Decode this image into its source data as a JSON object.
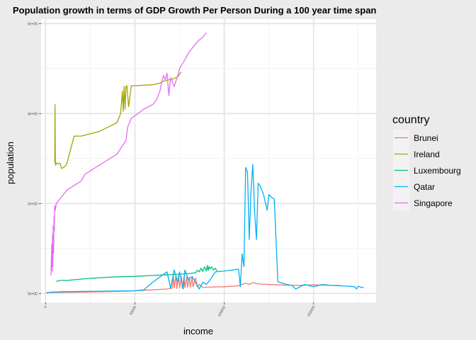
{
  "chart_data": {
    "type": "line",
    "title": "Population growth in terms of GDP Growth Per Person During a 100 year time span",
    "xlabel": "income",
    "ylabel": "population",
    "xlim": [
      -2500,
      185000
    ],
    "ylim": [
      -200000,
      6100000
    ],
    "x_ticks": [
      0,
      50000,
      100000,
      150000
    ],
    "x_tick_labels": [
      "0",
      "50000",
      "100000",
      "150000"
    ],
    "y_ticks": [
      0,
      2000000,
      4000000,
      6000000
    ],
    "y_tick_labels": [
      "0e+00",
      "2e+06",
      "4e+06",
      "6e+06"
    ],
    "legend": {
      "title": "country",
      "position": "right"
    },
    "grid": true,
    "series": [
      {
        "name": "Brunei",
        "color": "#f8766d",
        "x": [
          500,
          20000,
          45000,
          60000,
          68000,
          71000,
          71500,
          72000,
          73000,
          73500,
          74500,
          75000,
          76000,
          76500,
          77500,
          78000,
          79000,
          79500,
          80500,
          81000,
          82000,
          82500,
          84000,
          85000,
          86000,
          88000,
          90000,
          100000,
          108000,
          112000,
          114000,
          116000,
          118000,
          120000,
          130000,
          140000,
          150000,
          160000,
          165000
        ],
        "y": [
          20000,
          30000,
          50000,
          80000,
          100000,
          120000,
          420000,
          130000,
          400000,
          110000,
          400000,
          120000,
          380000,
          120000,
          380000,
          130000,
          370000,
          140000,
          360000,
          140000,
          350000,
          150000,
          340000,
          150000,
          200000,
          130000,
          140000,
          150000,
          170000,
          230000,
          200000,
          240000,
          220000,
          210000,
          190000,
          180000,
          190000,
          180000,
          180000
        ]
      },
      {
        "name": "Ireland",
        "color": "#a3a500",
        "x": [
          5200,
          5300,
          5400,
          5500,
          5700,
          6000,
          7000,
          8000,
          9000,
          10000,
          11000,
          12000,
          13000,
          14000,
          16000,
          20000,
          25000,
          30000,
          35000,
          40000,
          42000,
          43000,
          43500,
          44000,
          44500,
          45000,
          45500,
          46000,
          46500,
          47000,
          48000,
          50000,
          55000,
          60000,
          62000,
          64000,
          66000,
          68000,
          70000,
          72000,
          74000,
          75000,
          76000
        ],
        "y": [
          2900000,
          4200000,
          3500000,
          2900000,
          2850000,
          2900000,
          2880000,
          2900000,
          2780000,
          2800000,
          2830000,
          2900000,
          3050000,
          3200000,
          3500000,
          3500000,
          3550000,
          3600000,
          3700000,
          3800000,
          4000000,
          4500000,
          4050000,
          4600000,
          4100000,
          4600000,
          4620000,
          4400000,
          4150000,
          4300000,
          4620000,
          4620000,
          4630000,
          4640000,
          4660000,
          4680000,
          4720000,
          4740000,
          4760000,
          4780000,
          4820000,
          4880000,
          4920000
        ]
      },
      {
        "name": "Luxembourg",
        "color": "#00bf7d",
        "x": [
          6000,
          8000,
          12000,
          20000,
          30000,
          40000,
          50000,
          60000,
          65000,
          70000,
          75000,
          80000,
          82000,
          84000,
          85000,
          86000,
          87000,
          88000,
          89000,
          90000,
          90500,
          91000,
          91500,
          92000,
          93000,
          94000,
          95000,
          96000
        ],
        "y": [
          270000,
          290000,
          290000,
          320000,
          350000,
          370000,
          380000,
          400000,
          410000,
          420000,
          430000,
          440000,
          450000,
          460000,
          520000,
          480000,
          560000,
          490000,
          590000,
          500000,
          620000,
          510000,
          600000,
          550000,
          590000,
          520000,
          560000,
          500000
        ]
      },
      {
        "name": "Qatar",
        "color": "#00b0f6",
        "x": [
          500,
          3000,
          10000,
          30000,
          50000,
          55000,
          60000,
          68000,
          70000,
          72000,
          74000,
          75000,
          77000,
          78000,
          80000,
          82000,
          85000,
          86000,
          88000,
          90000,
          92000,
          95000,
          100000,
          108000,
          109000,
          110000,
          111000,
          112000,
          113000,
          114000,
          115000,
          116000,
          117000,
          118000,
          119000,
          120000,
          121000,
          122000,
          124000,
          125000,
          126000,
          128000,
          130000,
          135000,
          138000,
          140000,
          145000,
          150000,
          155000,
          160000,
          165000,
          170000,
          173000,
          174000,
          175000,
          177000,
          178000
        ],
        "y": [
          10000,
          30000,
          40000,
          50000,
          60000,
          80000,
          250000,
          480000,
          120000,
          520000,
          250000,
          480000,
          100000,
          520000,
          300000,
          380000,
          170000,
          100000,
          250000,
          200000,
          300000,
          480000,
          500000,
          540000,
          150000,
          880000,
          600000,
          2800000,
          2700000,
          1200000,
          2300000,
          2870000,
          1800000,
          1200000,
          2450000,
          2400000,
          2300000,
          2200000,
          1850000,
          2200000,
          2150000,
          2100000,
          260000,
          200000,
          180000,
          100000,
          200000,
          150000,
          200000,
          180000,
          170000,
          160000,
          150000,
          100000,
          160000,
          130000,
          140000
        ]
      },
      {
        "name": "Singapore",
        "color": "#e76bf3",
        "x": [
          3000,
          3200,
          3500,
          3700,
          3900,
          4100,
          4300,
          4500,
          4700,
          4900,
          5000,
          5200,
          5500,
          6000,
          8000,
          10000,
          12000,
          14000,
          16000,
          18000,
          20000,
          22000,
          24000,
          26000,
          28000,
          30000,
          32000,
          34000,
          36000,
          38000,
          40000,
          45000,
          46000,
          47000,
          48000,
          50000,
          55000,
          60000,
          62000,
          63000,
          64000,
          65000,
          66000,
          67000,
          68000,
          69000,
          70000,
          72000,
          74000,
          75000,
          78000,
          80000,
          85000,
          88000,
          90000
        ],
        "y": [
          400000,
          700000,
          1100000,
          500000,
          1300000,
          600000,
          1500000,
          900000,
          1700000,
          1400000,
          1800000,
          1950000,
          1850000,
          2000000,
          2100000,
          2200000,
          2300000,
          2350000,
          2400000,
          2450000,
          2500000,
          2650000,
          2700000,
          2750000,
          2800000,
          2850000,
          2900000,
          2950000,
          3000000,
          3050000,
          3100000,
          3400000,
          3700000,
          3800000,
          3900000,
          3950000,
          4100000,
          4200000,
          4300000,
          4400000,
          4500000,
          4700000,
          4850000,
          4750000,
          4900000,
          4400000,
          4800000,
          4600000,
          4850000,
          5000000,
          5200000,
          5350000,
          5600000,
          5700000,
          5800000
        ]
      }
    ]
  }
}
